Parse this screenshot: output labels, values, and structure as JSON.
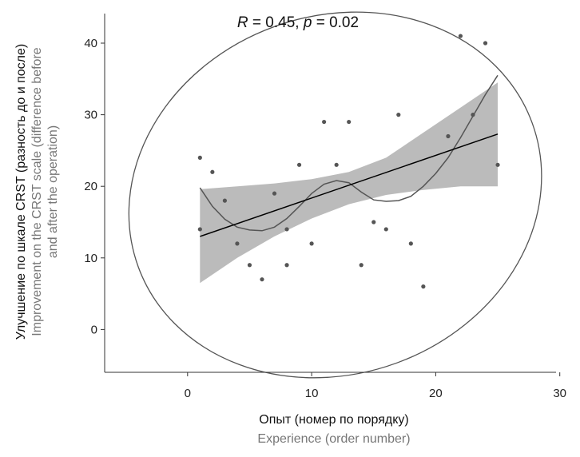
{
  "chart_data": {
    "type": "scatter",
    "annotation": {
      "R_sym": "R",
      "R_rest": " = 0.45, ",
      "p_sym": "p",
      "p_rest": " = 0.02"
    },
    "xlabel_ru": "Опыт (номер по порядку)",
    "xlabel_en": "Experience (order number)",
    "ylabel_ru": "Улучшение по шкале CRST (разность до и после)",
    "ylabel_en_line1": "Improvement on the CRST scale (difference before",
    "ylabel_en_line2": "and after the operation)",
    "xlim": [
      -6,
      30
    ],
    "ylim": [
      -6,
      44
    ],
    "xticks": [
      0,
      10,
      20,
      30
    ],
    "yticks": [
      0,
      10,
      20,
      30,
      40
    ],
    "grid": false,
    "points": [
      {
        "x": 1,
        "y": 24
      },
      {
        "x": 1,
        "y": 14
      },
      {
        "x": 2,
        "y": 22
      },
      {
        "x": 3,
        "y": 18
      },
      {
        "x": 4,
        "y": 12
      },
      {
        "x": 5,
        "y": 9
      },
      {
        "x": 6,
        "y": 7
      },
      {
        "x": 7,
        "y": 19
      },
      {
        "x": 8,
        "y": 14
      },
      {
        "x": 8,
        "y": 9
      },
      {
        "x": 9,
        "y": 23
      },
      {
        "x": 10,
        "y": 12
      },
      {
        "x": 11,
        "y": 29
      },
      {
        "x": 12,
        "y": 23
      },
      {
        "x": 13,
        "y": 29
      },
      {
        "x": 14,
        "y": 9
      },
      {
        "x": 15,
        "y": 15
      },
      {
        "x": 16,
        "y": 14
      },
      {
        "x": 17,
        "y": 30
      },
      {
        "x": 18,
        "y": 12
      },
      {
        "x": 19,
        "y": 6
      },
      {
        "x": 21,
        "y": 27
      },
      {
        "x": 22,
        "y": 41
      },
      {
        "x": 23,
        "y": 30
      },
      {
        "x": 24,
        "y": 40
      },
      {
        "x": 25,
        "y": 23
      }
    ],
    "regression": {
      "x0": 1,
      "y0": 13.0,
      "x1": 25,
      "y1": 27.3
    },
    "confidence_band": {
      "x": [
        1,
        4,
        7,
        10,
        13,
        16,
        19,
        22,
        25
      ],
      "lower": [
        6.5,
        10.0,
        13.0,
        15.5,
        17.5,
        18.8,
        19.5,
        20.0,
        20.0
      ],
      "upper": [
        19.6,
        20.0,
        20.4,
        21.0,
        22.0,
        24.0,
        27.5,
        31.0,
        34.5
      ]
    },
    "loess": {
      "x": [
        1,
        2,
        3,
        4,
        5,
        6,
        7,
        8,
        9,
        10,
        11,
        12,
        13,
        14,
        15,
        16,
        17,
        18,
        19,
        20,
        21,
        22,
        23,
        24,
        25
      ],
      "y": [
        19.8,
        17.2,
        15.4,
        14.3,
        13.9,
        13.8,
        14.3,
        15.5,
        17.2,
        19.0,
        20.3,
        20.8,
        20.5,
        19.2,
        18.1,
        17.9,
        18.0,
        18.6,
        20.0,
        21.8,
        24.0,
        26.8,
        29.8,
        32.8,
        35.5
      ]
    },
    "ellipse": {
      "cx": 11.9,
      "cy": 18.8,
      "rx_data": 16.9,
      "ry_data": 25.0,
      "rotation_deg": -20
    },
    "series_colors": {
      "points": "#555555",
      "band": "#bbbbbb",
      "regression": "#000000",
      "loess": "#555555",
      "ellipse": "#555555"
    }
  }
}
